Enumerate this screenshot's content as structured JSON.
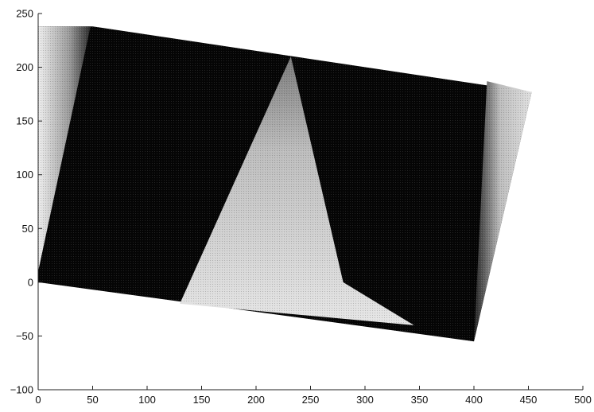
{
  "chart_data": {
    "type": "heatmap",
    "title": "",
    "xlabel": "",
    "ylabel": "",
    "xlim": [
      0,
      500
    ],
    "ylim": [
      -100,
      250
    ],
    "x_ticks": [
      0,
      50,
      100,
      150,
      200,
      250,
      300,
      350,
      400,
      450,
      500
    ],
    "y_ticks": [
      -100,
      -50,
      0,
      50,
      100,
      150,
      200,
      250
    ],
    "x_tick_labels": [
      "0",
      "50",
      "100",
      "150",
      "200",
      "250",
      "300",
      "350",
      "400",
      "450",
      "500"
    ],
    "y_tick_labels": [
      "−100",
      "−50",
      "0",
      "50",
      "100",
      "150",
      "200",
      "250"
    ],
    "grid": false,
    "colormap": "grayscale",
    "image_quadrilateral": [
      [
        0,
        238
      ],
      [
        50,
        238
      ],
      [
        453,
        177
      ],
      [
        400,
        -55
      ],
      [
        0,
        0
      ]
    ],
    "bright_cone": {
      "apex": [
        232,
        210
      ],
      "base": [
        [
          180,
          0
        ],
        [
          280,
          0
        ],
        [
          345,
          -40
        ],
        [
          130,
          -20
        ]
      ],
      "color": "#d9d9d9"
    },
    "left_edge_wedge": {
      "points": [
        [
          0,
          238
        ],
        [
          48,
          238
        ],
        [
          0,
          10
        ]
      ],
      "color": "#cfcfcf"
    },
    "right_edge_wedge": {
      "points": [
        [
          412,
          187
        ],
        [
          453,
          177
        ],
        [
          400,
          -55
        ]
      ],
      "color": "#cfcfcf"
    },
    "background_color": "#050505"
  }
}
